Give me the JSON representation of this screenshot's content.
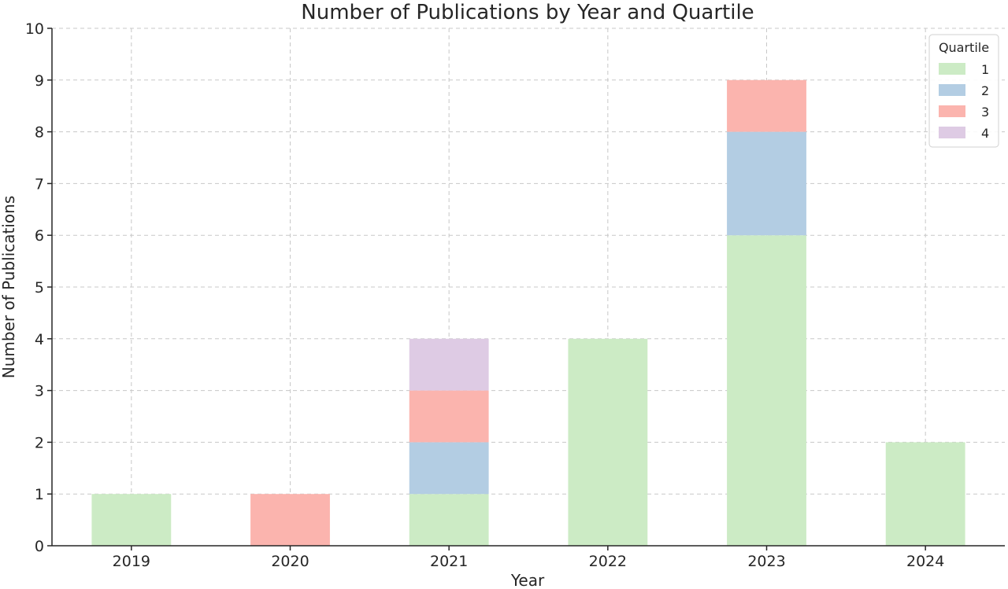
{
  "chart_data": {
    "type": "bar",
    "stacked": true,
    "title": "Number of Publications by Year and Quartile",
    "xlabel": "Year",
    "ylabel": "Number of Publications",
    "categories": [
      "2019",
      "2020",
      "2021",
      "2022",
      "2023",
      "2024"
    ],
    "ylim": [
      0,
      10
    ],
    "yticks": [
      0,
      1,
      2,
      3,
      4,
      5,
      6,
      7,
      8,
      9,
      10
    ],
    "grid": true,
    "legend": {
      "title": "Quartile",
      "placement": "top-right"
    },
    "series": [
      {
        "name": "1",
        "color": "#ccebc5",
        "values": [
          1,
          0,
          1,
          4,
          6,
          2
        ]
      },
      {
        "name": "2",
        "color": "#b3cde3",
        "values": [
          0,
          0,
          1,
          0,
          2,
          0
        ]
      },
      {
        "name": "3",
        "color": "#fbb4ae",
        "values": [
          0,
          1,
          1,
          0,
          1,
          0
        ]
      },
      {
        "name": "4",
        "color": "#decbe4",
        "values": [
          0,
          0,
          1,
          0,
          0,
          0
        ]
      }
    ]
  }
}
